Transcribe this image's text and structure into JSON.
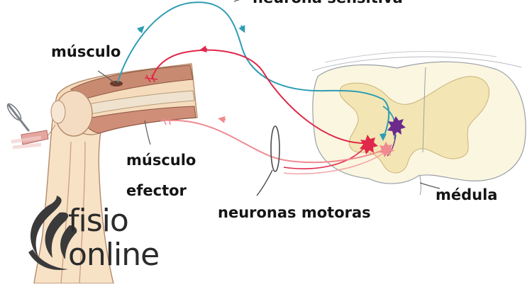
{
  "labels": {
    "sensory_neuron": "neurona sensitiva",
    "muscle": "músculo",
    "effector_muscle_line1": "músculo",
    "effector_muscle_line2": "efector",
    "motor_neurons": "neuronas motoras",
    "spinal_cord": "médula"
  },
  "logo": {
    "line1": "fisio",
    "line2": "online"
  },
  "colors": {
    "sensory_neuron": "#2e9db3",
    "motor_neuron_red": "#e0284a",
    "motor_neuron_pink": "#f08a90",
    "grey_matter": "#f3e6b4",
    "white_matter": "#fbf6e0",
    "muscle": "#c98a72",
    "bone": "#f5e4cc"
  }
}
